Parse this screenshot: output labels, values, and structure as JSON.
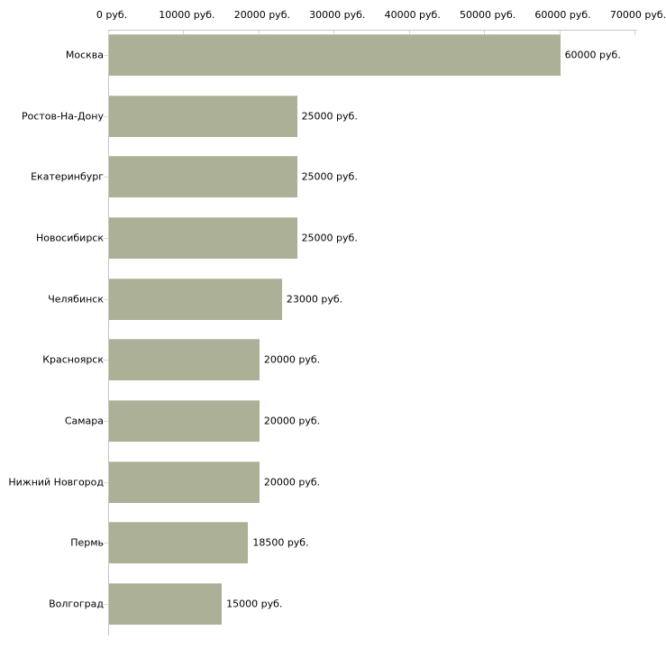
{
  "chart_data": {
    "type": "bar",
    "orientation": "horizontal",
    "title": "",
    "xlabel": "",
    "ylabel": "",
    "grid": false,
    "legend": null,
    "background": "#ffffff",
    "bar_color": "#acb096",
    "bar_border_top_color": "#c2c5b1",
    "axis_line_color": "#c6c6c6",
    "tick_mark_color": "#d9dabd",
    "text_color": "#000000",
    "categories": [
      "Москва",
      "Ростов-На-Дону",
      "Екатеринбург",
      "Новосибирск",
      "Челябинск",
      "Красноярск",
      "Самара",
      "Нижний Новгород",
      "Пермь",
      "Волгоград"
    ],
    "values": [
      60000,
      25000,
      25000,
      25000,
      23000,
      20000,
      20000,
      20000,
      18500,
      15000
    ],
    "value_labels": [
      "60000 руб.",
      "25000 руб.",
      "25000 руб.",
      "25000 руб.",
      "23000 руб.",
      "20000 руб.",
      "20000 руб.",
      "20000 руб.",
      "18500 руб.",
      "15000 руб."
    ],
    "x_axis": {
      "position": "top",
      "min": 0,
      "max": 70000,
      "ticks": [
        0,
        10000,
        20000,
        30000,
        40000,
        50000,
        60000,
        70000
      ],
      "tick_labels": [
        "0 руб.",
        "10000 руб.",
        "20000 руб.",
        "30000 руб.",
        "40000 руб.",
        "50000 руб.",
        "60000 руб.",
        "70000 руб."
      ]
    }
  }
}
